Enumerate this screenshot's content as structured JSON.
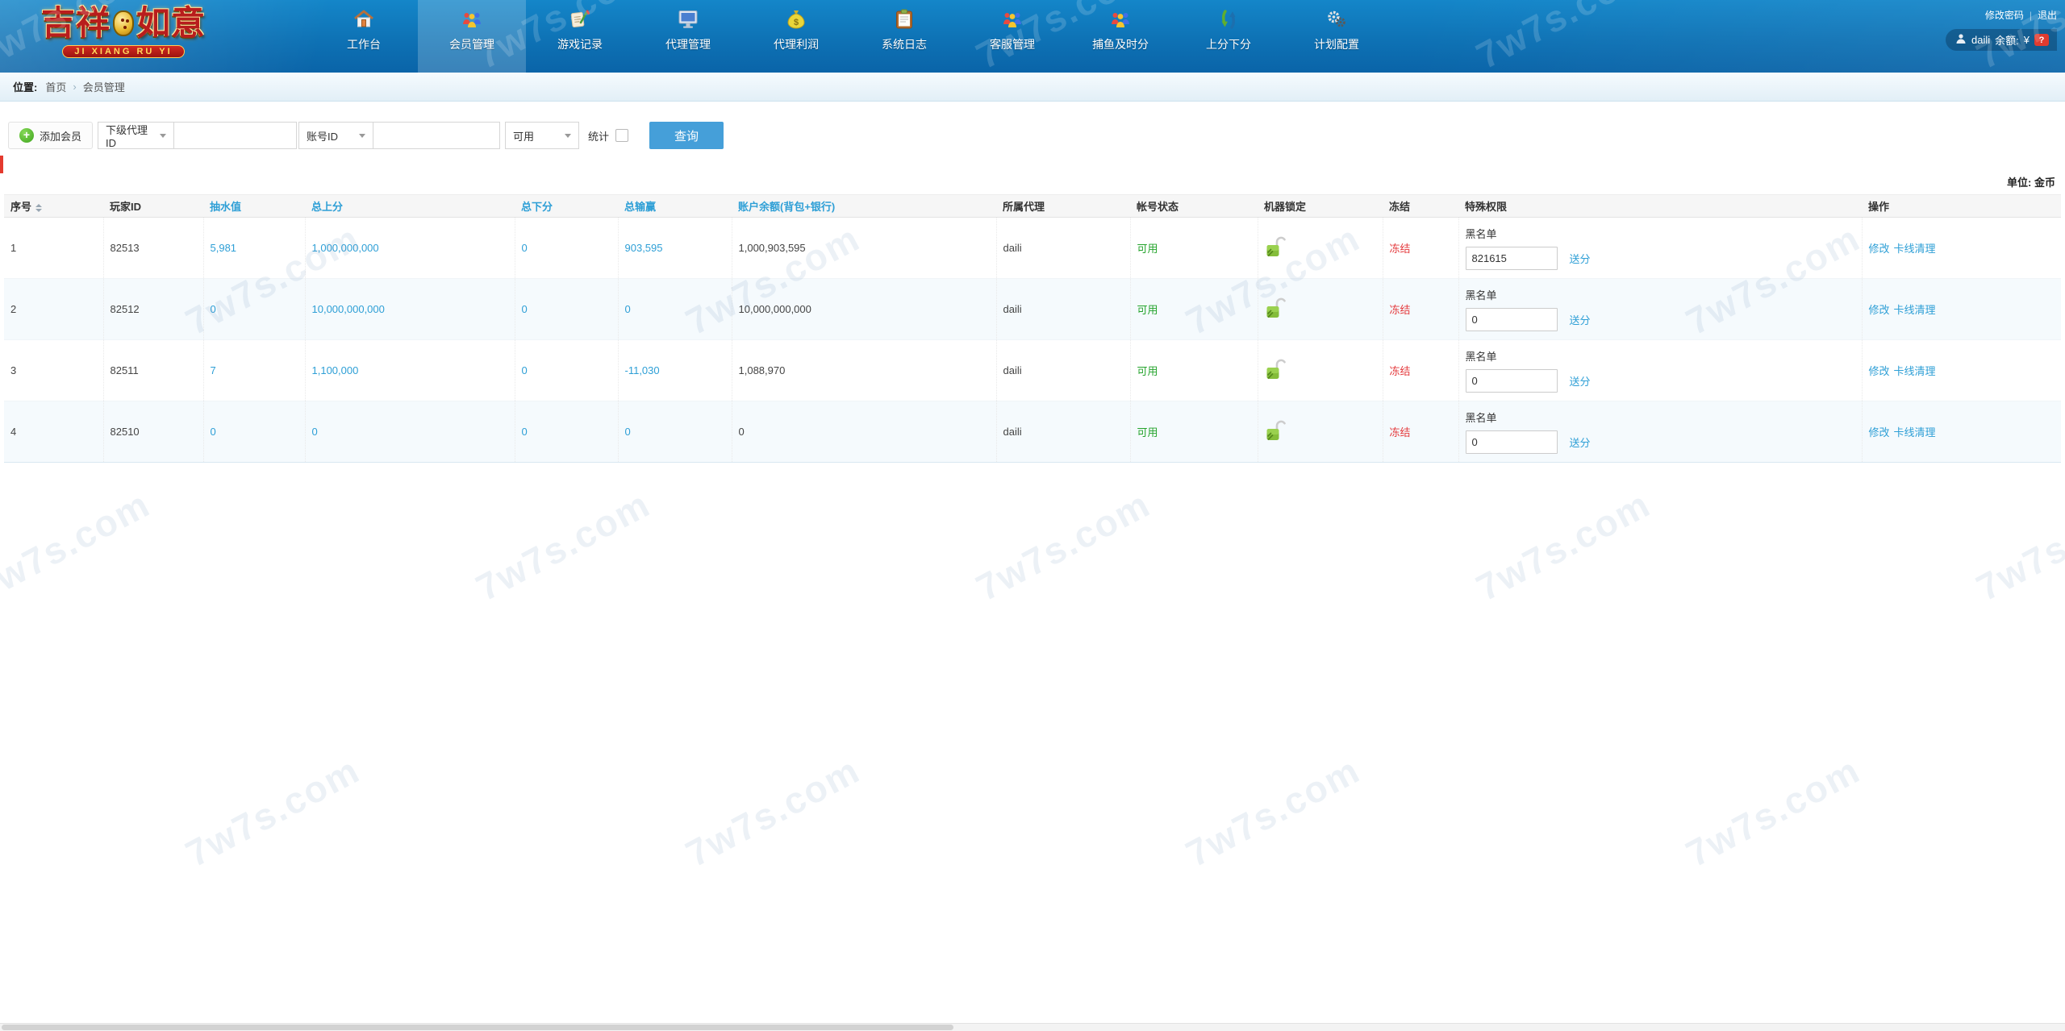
{
  "header": {
    "logo_left": "吉祥",
    "logo_right": "如意",
    "logo_sub": "JI XIANG RU YI",
    "change_password": "修改密码",
    "logout": "退出",
    "user_name": "daili",
    "balance_label": "余额:",
    "balance_currency": "¥",
    "balance_badge": "?",
    "nav": [
      {
        "label": "工作台",
        "icon": "home-icon",
        "active": false
      },
      {
        "label": "会员管理",
        "icon": "members-icon",
        "active": true
      },
      {
        "label": "游戏记录",
        "icon": "game-records-icon",
        "active": false
      },
      {
        "label": "代理管理",
        "icon": "agent-manage-icon",
        "active": false
      },
      {
        "label": "代理利润",
        "icon": "agent-profit-icon",
        "active": false
      },
      {
        "label": "系统日志",
        "icon": "system-log-icon",
        "active": false
      },
      {
        "label": "客服管理",
        "icon": "support-icon",
        "active": false
      },
      {
        "label": "捕鱼及时分",
        "icon": "fishing-points-icon",
        "active": false
      },
      {
        "label": "上分下分",
        "icon": "updown-points-icon",
        "active": false
      },
      {
        "label": "计划配置",
        "icon": "plan-config-icon",
        "active": false
      }
    ]
  },
  "breadcrumb": {
    "label": "位置:",
    "home": "首页",
    "current": "会员管理"
  },
  "toolbar": {
    "add_member": "添加会员",
    "agent_filter": "下级代理ID",
    "agent_id_value": "",
    "account_filter": "账号ID",
    "account_id_value": "",
    "status_filter": "可用",
    "stats_label": "统计",
    "search_button": "查询"
  },
  "table": {
    "unit_note": "单位: 金币",
    "headers": [
      {
        "label": "序号",
        "link": false,
        "sortable": true
      },
      {
        "label": "玩家ID",
        "link": false
      },
      {
        "label": "抽水值",
        "link": true
      },
      {
        "label": "总上分",
        "link": true
      },
      {
        "label": "总下分",
        "link": true
      },
      {
        "label": "总输赢",
        "link": true
      },
      {
        "label": "账户余额(背包+银行)",
        "link": true
      },
      {
        "label": "所属代理",
        "link": false
      },
      {
        "label": "帐号状态",
        "link": false
      },
      {
        "label": "机器锁定",
        "link": false
      },
      {
        "label": "冻结",
        "link": false
      },
      {
        "label": "特殊权限",
        "link": false
      },
      {
        "label": "操作",
        "link": false
      }
    ],
    "blacklist_label": "黑名单",
    "send_points_link": "送分",
    "action_modify": "修改",
    "action_clear": "卡线清理",
    "rows": [
      {
        "seq": "1",
        "player_id": "82513",
        "rake": "5,981",
        "total_up": "1,000,000,000",
        "total_down": "0",
        "total_winloss": "903,595",
        "balance": "1,000,903,595",
        "agent": "daili",
        "status": "可用",
        "freeze": "冻结",
        "blacklist_value": "821615"
      },
      {
        "seq": "2",
        "player_id": "82512",
        "rake": "0",
        "total_up": "10,000,000,000",
        "total_down": "0",
        "total_winloss": "0",
        "balance": "10,000,000,000",
        "agent": "daili",
        "status": "可用",
        "freeze": "冻结",
        "blacklist_value": "0"
      },
      {
        "seq": "3",
        "player_id": "82511",
        "rake": "7",
        "total_up": "1,100,000",
        "total_down": "0",
        "total_winloss": "-11,030",
        "balance": "1,088,970",
        "agent": "daili",
        "status": "可用",
        "freeze": "冻结",
        "blacklist_value": "0"
      },
      {
        "seq": "4",
        "player_id": "82510",
        "rake": "0",
        "total_up": "0",
        "total_down": "0",
        "total_winloss": "0",
        "balance": "0",
        "agent": "daili",
        "status": "可用",
        "freeze": "冻结",
        "blacklist_value": "0"
      }
    ]
  },
  "watermark_text": "7w7s.com",
  "colors": {
    "header_blue": "#0e72b5",
    "link_blue": "#2e9fd6",
    "status_green": "#23a32b",
    "freeze_red": "#e4393c",
    "search_button_blue": "#459fd9"
  }
}
